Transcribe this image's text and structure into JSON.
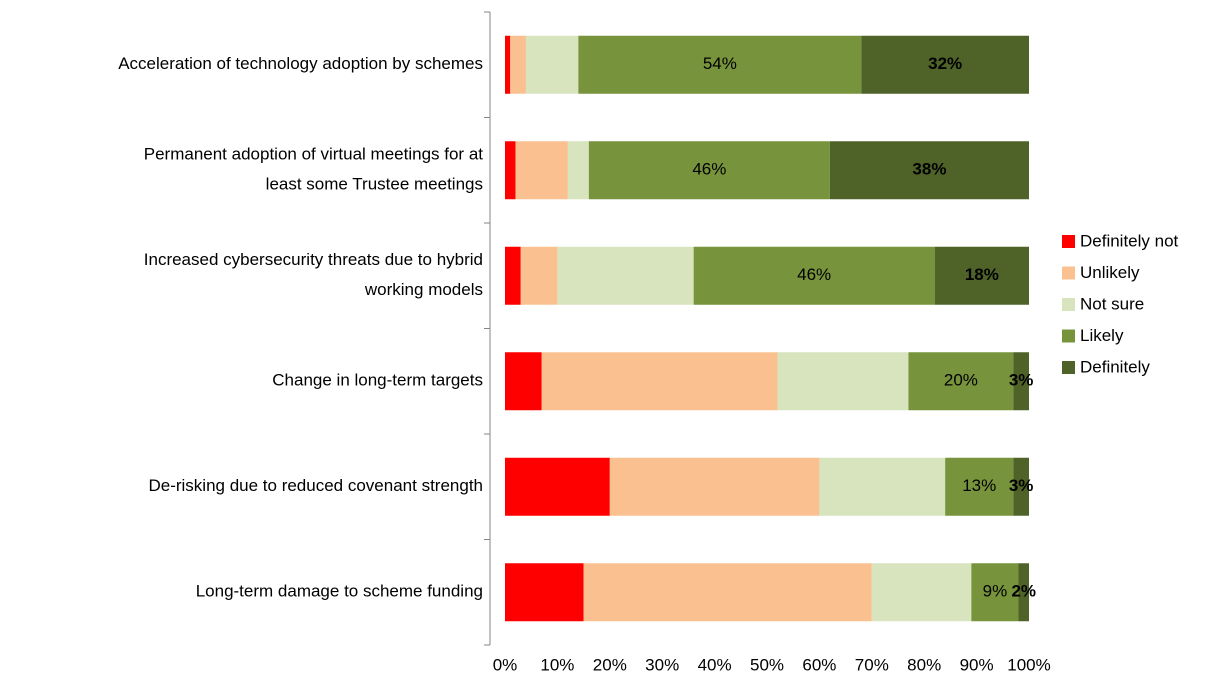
{
  "chart_data": {
    "type": "stacked_bar_horizontal",
    "categories": [
      "Acceleration of technology adoption by schemes",
      "Permanent adoption of virtual meetings for at\nleast some Trustee meetings",
      "Increased cybersecurity threats due to hybrid\nworking models",
      "Change in long-term targets",
      "De-risking due to reduced covenant strength",
      "Long-term damage to scheme funding"
    ],
    "series": [
      {
        "name": "Definitely not",
        "color": "#ff0000",
        "values": [
          1,
          2,
          3,
          7,
          20,
          15
        ]
      },
      {
        "name": "Unlikely",
        "color": "#fac090",
        "values": [
          3,
          10,
          7,
          45,
          40,
          55
        ]
      },
      {
        "name": "Not sure",
        "color": "#d7e4bd",
        "values": [
          10,
          4,
          26,
          25,
          24,
          19
        ]
      },
      {
        "name": "Likely",
        "color": "#77933c",
        "values": [
          54,
          46,
          46,
          20,
          13,
          9
        ],
        "value_labels": [
          "54%",
          "46%",
          "46%",
          "20%",
          "13%",
          "9%"
        ]
      },
      {
        "name": "Definitely",
        "color": "#4f6228",
        "values": [
          32,
          38,
          18,
          3,
          3,
          2
        ],
        "value_labels": [
          "32%",
          "38%",
          "18%",
          "3%",
          "3%",
          "2%"
        ],
        "label_bold": true
      }
    ],
    "xlim": [
      0,
      100
    ],
    "xticks": [
      {
        "value": 0,
        "label": "0%"
      },
      {
        "value": 10,
        "label": "10%"
      },
      {
        "value": 20,
        "label": "20%"
      },
      {
        "value": 30,
        "label": "30%"
      },
      {
        "value": 40,
        "label": "40%"
      },
      {
        "value": 50,
        "label": "50%"
      },
      {
        "value": 60,
        "label": "60%"
      },
      {
        "value": 70,
        "label": "70%"
      },
      {
        "value": 80,
        "label": "80%"
      },
      {
        "value": 90,
        "label": "90%"
      },
      {
        "value": 100,
        "label": "100%"
      }
    ],
    "grid": false,
    "legend": "right"
  }
}
